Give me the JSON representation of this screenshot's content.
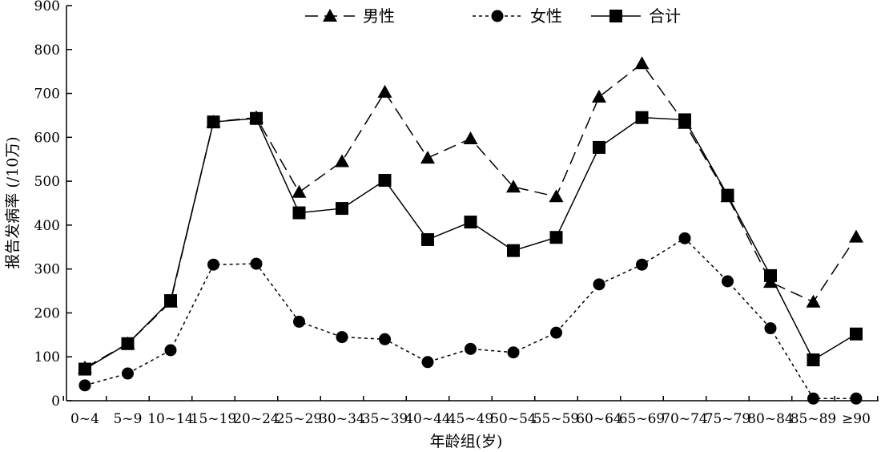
{
  "chart_data": {
    "type": "line",
    "xlabel": "年龄组(岁)",
    "ylabel": "报告发病率 (/10万)",
    "ylim": [
      0,
      900
    ],
    "yticks": [
      0,
      100,
      200,
      300,
      400,
      500,
      600,
      700,
      800,
      900
    ],
    "grid": false,
    "legend_position": "top-center",
    "categories": [
      "0~4",
      "5~9",
      "10~14",
      "15~19",
      "20~24",
      "25~29",
      "30~34",
      "35~39",
      "40~44",
      "45~49",
      "50~54",
      "55~59",
      "60~64",
      "65~69",
      "70~74",
      "75~79",
      "80~84",
      "85~89",
      "≥90"
    ],
    "series": [
      {
        "name": "男性",
        "marker": "triangle",
        "line_style": "long-dash",
        "values": [
          75,
          130,
          225,
          635,
          645,
          475,
          545,
          703,
          553,
          597,
          487,
          465,
          692,
          768,
          632,
          465,
          270,
          225,
          373
        ]
      },
      {
        "name": "女性",
        "marker": "circle",
        "line_style": "short-dash",
        "values": [
          35,
          62,
          115,
          310,
          312,
          180,
          145,
          140,
          88,
          118,
          110,
          155,
          265,
          310,
          370,
          272,
          165,
          5,
          5
        ]
      },
      {
        "name": "合计",
        "marker": "square",
        "line_style": "solid",
        "values": [
          72,
          130,
          228,
          635,
          643,
          428,
          438,
          502,
          367,
          407,
          342,
          372,
          577,
          645,
          640,
          468,
          285,
          93,
          152
        ]
      }
    ]
  }
}
